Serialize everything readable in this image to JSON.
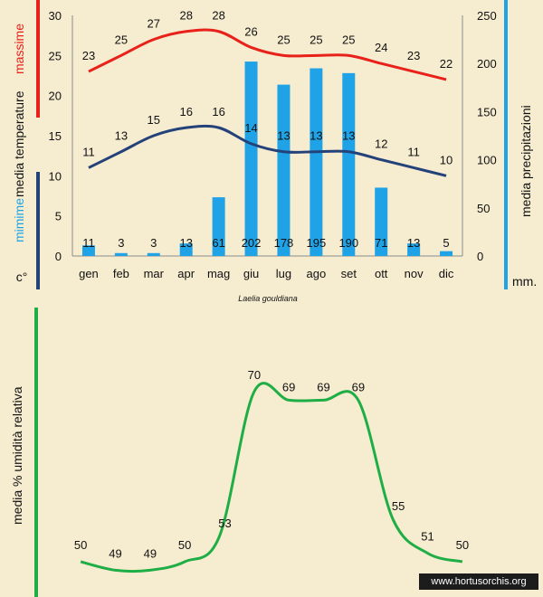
{
  "chart_data": [
    {
      "type": "bar",
      "title": "Laelia gouldiana",
      "categories": [
        "gen",
        "feb",
        "mar",
        "apr",
        "mag",
        "giu",
        "lug",
        "ago",
        "set",
        "ott",
        "nov",
        "dic"
      ],
      "y_left": {
        "ylim": [
          0,
          30
        ],
        "ticks": [
          0,
          5,
          10,
          15,
          20,
          25,
          30
        ],
        "label_parts": [
          "c°",
          "mimime",
          "media temperature",
          "massime"
        ]
      },
      "y_right": {
        "ylim": [
          0,
          250
        ],
        "ticks": [
          0,
          50,
          100,
          150,
          200,
          250
        ],
        "label": "media precipitazioni",
        "unit": "mm."
      },
      "series": [
        {
          "name": "massime",
          "type": "line",
          "axis": "left",
          "color": "#e8211b",
          "values": [
            23,
            25,
            27,
            28,
            28,
            26,
            25,
            25,
            25,
            24,
            23,
            22
          ]
        },
        {
          "name": "mimime",
          "type": "line",
          "axis": "left",
          "color": "#24427a",
          "values": [
            11,
            13,
            15,
            16,
            16,
            14,
            13,
            13,
            13,
            12,
            11,
            10
          ]
        },
        {
          "name": "media precipitazioni",
          "type": "bar",
          "axis": "right",
          "color": "#1fa3e6",
          "values": [
            11,
            3,
            3,
            13,
            61,
            202,
            178,
            195,
            190,
            71,
            13,
            5
          ]
        }
      ]
    },
    {
      "type": "line",
      "ylabel": "media % umidità relativa",
      "categories": [
        "gen",
        "feb",
        "mar",
        "apr",
        "mag",
        "giu",
        "lug",
        "ago",
        "set",
        "ott",
        "nov",
        "dic"
      ],
      "ylim": [
        45,
        75
      ],
      "series": [
        {
          "color": "#1fae45",
          "values": [
            50,
            49,
            49,
            50,
            53,
            70,
            69,
            69,
            69,
            55,
            51,
            50
          ]
        }
      ]
    }
  ],
  "credit": "www.hortusorchis.org",
  "colors": {
    "background": "#f6ecd0",
    "axis": "#8b8b8b",
    "humidity_axis": "#1fae45",
    "precip_axis": "#1fa3e6"
  }
}
